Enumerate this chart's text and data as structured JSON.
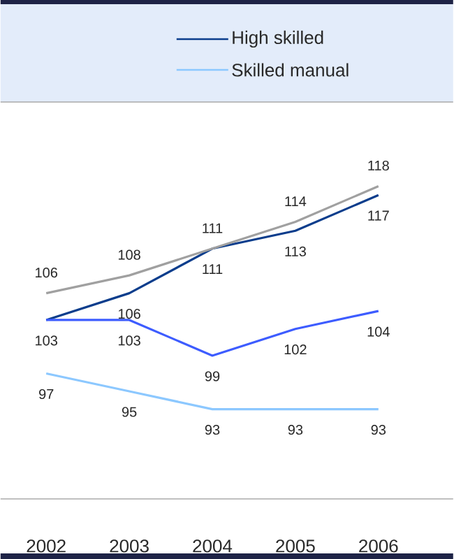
{
  "chart_data": {
    "type": "line",
    "categories": [
      "2002",
      "2003",
      "2004",
      "2005",
      "2006"
    ],
    "series": [
      {
        "name": "High skilled",
        "color": "#0b3d8c",
        "values": [
          103,
          106,
          111,
          113,
          117
        ],
        "value_labels": [
          null,
          "106",
          "111",
          "113",
          "117"
        ]
      },
      {
        "color": "#3d5cff",
        "values": [
          103,
          103,
          99,
          102,
          104
        ],
        "value_labels": [
          "103",
          "103",
          "99",
          "102",
          "104"
        ]
      },
      {
        "name": "Skilled manual",
        "color": "#8cc8ff",
        "values": [
          97,
          95,
          93,
          93,
          93
        ],
        "value_labels": [
          "97",
          "95",
          "93",
          "93",
          "93"
        ]
      },
      {
        "color": "#a0a0a0",
        "values": [
          106,
          108,
          111,
          114,
          118
        ],
        "value_labels": [
          "106",
          "108",
          "111",
          "114",
          "118"
        ]
      }
    ],
    "tick_labels": "x",
    "legend": "top",
    "grid": false,
    "marker": "none",
    "line_style": "solid"
  }
}
